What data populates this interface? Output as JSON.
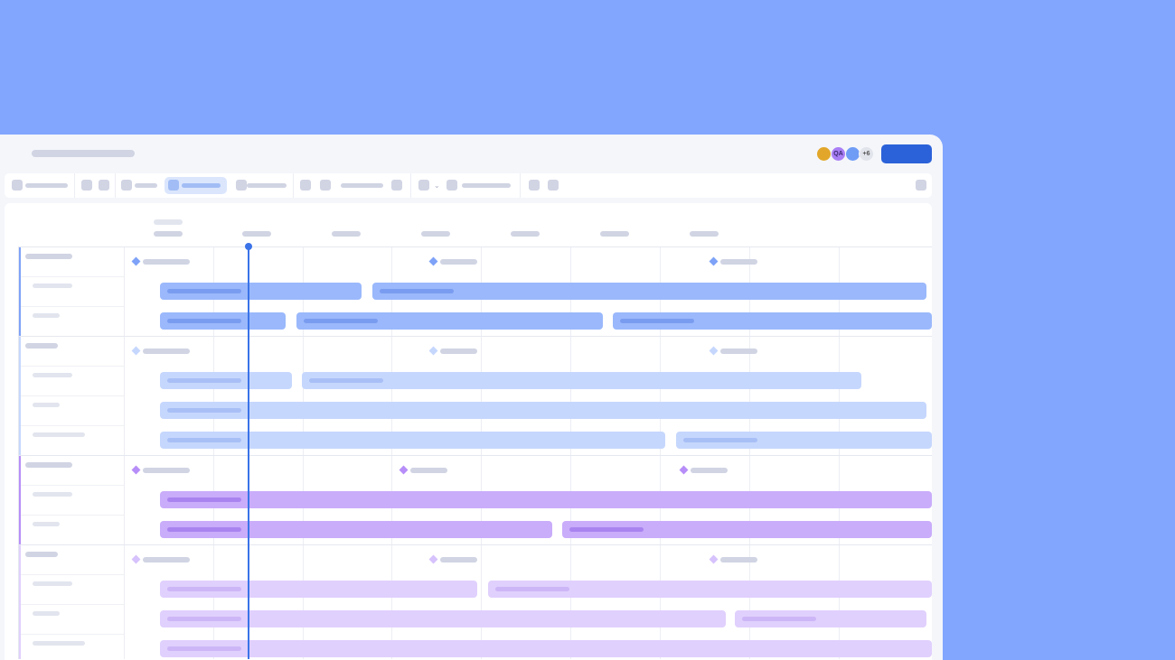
{
  "header": {
    "avatars": [
      {
        "kind": "photo",
        "bg": "#e2a72a",
        "label": ""
      },
      {
        "kind": "initials",
        "bg": "#a97ef5",
        "label": "QA"
      },
      {
        "kind": "photo",
        "bg": "#6f9cf5",
        "label": ""
      },
      {
        "kind": "count",
        "bg": "#e2e4ec",
        "label": "+6"
      }
    ],
    "primary_button_color": "#2b62d9"
  },
  "timeline": {
    "today_line_color": "#3b73e8",
    "groups": [
      {
        "border": "#7ea2f7",
        "bar": "#9ab8fb",
        "bar_label": "#7a9cf0",
        "diamond": "#7ea2f7",
        "rows": 3
      },
      {
        "border": "#c6d7fd",
        "bar": "#c6d7fd",
        "bar_label": "#a8bff6",
        "diamond": "#c6d7fd",
        "rows": 4
      },
      {
        "border": "#b78ef8",
        "bar": "#c9acfa",
        "bar_label": "#a984f0",
        "diamond": "#b78ef8",
        "rows": 3
      },
      {
        "border": "#e0d0fd",
        "bar": "#e0d0fd",
        "bar_label": "#cdb6f7",
        "diamond": "#d6c2fc",
        "rows": 4
      }
    ]
  }
}
